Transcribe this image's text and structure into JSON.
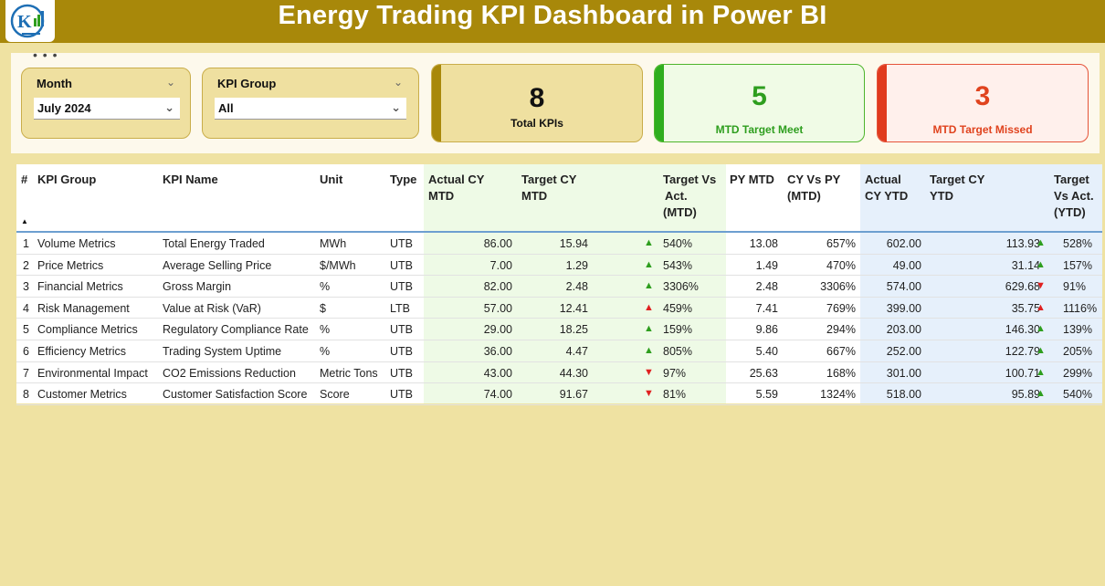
{
  "header": {
    "title": "Energy Trading KPI Dashboard in Power BI"
  },
  "colors": {
    "header_bg": "#a8880a",
    "page_bg": "#efe2a2",
    "meet_green": "#2e9e1e",
    "miss_red": "#e0431e"
  },
  "slicers": {
    "month": {
      "label": "Month",
      "value": "July 2024"
    },
    "kpi_group": {
      "label": "KPI Group",
      "value": "All"
    }
  },
  "cards": {
    "total": {
      "value": "8",
      "label": "Total KPIs"
    },
    "meet": {
      "value": "5",
      "label": "MTD Target Meet"
    },
    "missed": {
      "value": "3",
      "label": "MTD Target Missed"
    }
  },
  "table": {
    "columns": {
      "num": "#",
      "group": "KPI Group",
      "name": "KPI Name",
      "unit": "Unit",
      "type": "Type",
      "act_mtd_1": "Actual CY",
      "act_mtd_2": "MTD",
      "tgt_mtd_1": "Target CY",
      "tgt_mtd_2": "MTD",
      "tva_mtd_1": "Target Vs",
      "tva_mtd_2": "Act.",
      "tva_mtd_3": "(MTD)",
      "py_mtd": "PY MTD",
      "cyvpy_1": "CY Vs PY",
      "cyvpy_2": "(MTD)",
      "act_ytd_1": "Actual",
      "act_ytd_2": "CY YTD",
      "tgt_ytd_1": "Target CY",
      "tgt_ytd_2": "YTD",
      "tva_ytd_1": "Target",
      "tva_ytd_2": "Vs Act.",
      "tva_ytd_3": "(YTD)"
    },
    "rows": [
      {
        "num": "1",
        "group": "Volume Metrics",
        "name": "Total Energy Traded",
        "unit": "MWh",
        "type": "UTB",
        "act_mtd": "86.00",
        "tgt_mtd": "15.94",
        "mtd_dir": "up",
        "mtd_color": "green",
        "tva_mtd": "540%",
        "py_mtd": "13.08",
        "cyvpy": "657%",
        "act_ytd": "602.00",
        "tgt_ytd": "113.93",
        "ytd_dir": "up",
        "ytd_color": "green",
        "tva_ytd": "528%"
      },
      {
        "num": "2",
        "group": "Price Metrics",
        "name": "Average Selling Price",
        "unit": "$/MWh",
        "type": "UTB",
        "act_mtd": "7.00",
        "tgt_mtd": "1.29",
        "mtd_dir": "up",
        "mtd_color": "green",
        "tva_mtd": "543%",
        "py_mtd": "1.49",
        "cyvpy": "470%",
        "act_ytd": "49.00",
        "tgt_ytd": "31.14",
        "ytd_dir": "up",
        "ytd_color": "green",
        "tva_ytd": "157%"
      },
      {
        "num": "3",
        "group": "Financial Metrics",
        "name": "Gross Margin",
        "unit": "%",
        "type": "UTB",
        "act_mtd": "82.00",
        "tgt_mtd": "2.48",
        "mtd_dir": "up",
        "mtd_color": "green",
        "tva_mtd": "3306%",
        "py_mtd": "2.48",
        "cyvpy": "3306%",
        "act_ytd": "574.00",
        "tgt_ytd": "629.68",
        "ytd_dir": "down",
        "ytd_color": "red",
        "tva_ytd": "91%"
      },
      {
        "num": "4",
        "group": "Risk Management",
        "name": "Value at Risk (VaR)",
        "unit": "$",
        "type": "LTB",
        "act_mtd": "57.00",
        "tgt_mtd": "12.41",
        "mtd_dir": "up",
        "mtd_color": "red",
        "tva_mtd": "459%",
        "py_mtd": "7.41",
        "cyvpy": "769%",
        "act_ytd": "399.00",
        "tgt_ytd": "35.75",
        "ytd_dir": "up",
        "ytd_color": "red",
        "tva_ytd": "1116%"
      },
      {
        "num": "5",
        "group": "Compliance Metrics",
        "name": "Regulatory Compliance Rate",
        "unit": "%",
        "type": "UTB",
        "act_mtd": "29.00",
        "tgt_mtd": "18.25",
        "mtd_dir": "up",
        "mtd_color": "green",
        "tva_mtd": "159%",
        "py_mtd": "9.86",
        "cyvpy": "294%",
        "act_ytd": "203.00",
        "tgt_ytd": "146.30",
        "ytd_dir": "up",
        "ytd_color": "green",
        "tva_ytd": "139%"
      },
      {
        "num": "6",
        "group": "Efficiency Metrics",
        "name": "Trading System Uptime",
        "unit": "%",
        "type": "UTB",
        "act_mtd": "36.00",
        "tgt_mtd": "4.47",
        "mtd_dir": "up",
        "mtd_color": "green",
        "tva_mtd": "805%",
        "py_mtd": "5.40",
        "cyvpy": "667%",
        "act_ytd": "252.00",
        "tgt_ytd": "122.79",
        "ytd_dir": "up",
        "ytd_color": "green",
        "tva_ytd": "205%"
      },
      {
        "num": "7",
        "group": "Environmental Impact",
        "name": "CO2 Emissions Reduction",
        "unit": "Metric Tons",
        "type": "UTB",
        "act_mtd": "43.00",
        "tgt_mtd": "44.30",
        "mtd_dir": "down",
        "mtd_color": "red",
        "tva_mtd": "97%",
        "py_mtd": "25.63",
        "cyvpy": "168%",
        "act_ytd": "301.00",
        "tgt_ytd": "100.71",
        "ytd_dir": "up",
        "ytd_color": "green",
        "tva_ytd": "299%"
      },
      {
        "num": "8",
        "group": "Customer Metrics",
        "name": "Customer Satisfaction Score",
        "unit": "Score",
        "type": "UTB",
        "act_mtd": "74.00",
        "tgt_mtd": "91.67",
        "mtd_dir": "down",
        "mtd_color": "red",
        "tva_mtd": "81%",
        "py_mtd": "5.59",
        "cyvpy": "1324%",
        "act_ytd": "518.00",
        "tgt_ytd": "95.89",
        "ytd_dir": "up",
        "ytd_color": "green",
        "tva_ytd": "540%"
      }
    ]
  }
}
